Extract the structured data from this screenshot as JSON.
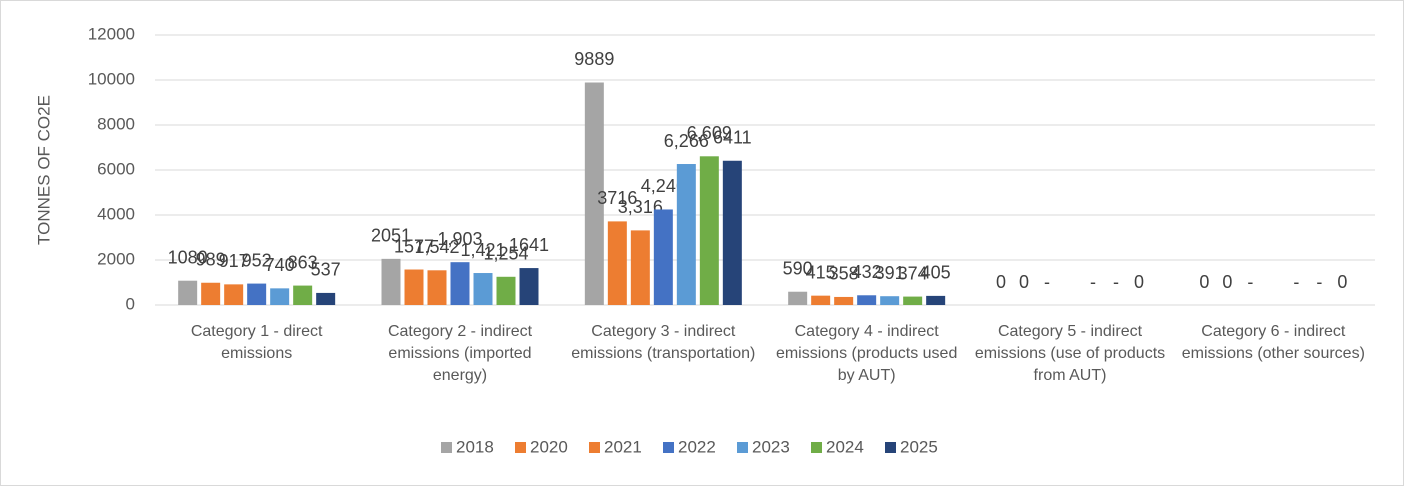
{
  "chart_data": {
    "type": "bar",
    "y_label": "TONNES OF CO2E",
    "categories": [
      "Category 1 - direct emissions",
      "Category 2 - indirect emissions (imported energy)",
      "Category 3 - indirect emissions (transportation)",
      "Category 4 - indirect emissions (products used by AUT)",
      "Category 5 - indirect emissions (use of products from AUT)",
      "Category 6 - indirect emissions (other sources)"
    ],
    "series": [
      {
        "name": "2018",
        "color": "#a5a5a5",
        "values": [
          1080,
          2051,
          9889,
          590,
          0,
          0
        ],
        "value_labels": [
          "1080",
          "2051",
          "9889",
          "590",
          "0",
          "0"
        ]
      },
      {
        "name": "2020",
        "color": "#ed7d31",
        "values": [
          989,
          1577,
          3716,
          415,
          0,
          0
        ],
        "value_labels": [
          "989",
          "1577",
          "3716",
          "415",
          "0",
          "0"
        ]
      },
      {
        "name": "2021",
        "color": "#ed7d31",
        "values": [
          917,
          1542,
          3316,
          358,
          0,
          0
        ],
        "value_labels": [
          "917",
          "1,542",
          "3,316",
          "358",
          "-",
          "-"
        ]
      },
      {
        "name": "2022",
        "color": "#4472c4",
        "values": [
          952,
          1903,
          4246,
          432,
          null,
          null
        ],
        "value_labels": [
          "952",
          "1,903",
          "4,246",
          "432",
          null,
          null
        ]
      },
      {
        "name": "2023",
        "color": "#5b9bd5",
        "values": [
          740,
          1421,
          6266,
          391,
          0,
          0
        ],
        "value_labels": [
          "740",
          "1,421",
          "6,266",
          "391",
          "-",
          "-"
        ]
      },
      {
        "name": "2024",
        "color": "#70ad47",
        "values": [
          863,
          1254,
          6609,
          374,
          0,
          0
        ],
        "value_labels": [
          "863",
          "1,254",
          "6,609",
          "374",
          "-",
          "-"
        ]
      },
      {
        "name": "2025",
        "color": "#264478",
        "values": [
          537,
          1641,
          6411,
          405,
          0,
          0
        ],
        "value_labels": [
          "537",
          "1641",
          "6411",
          "405",
          "0",
          "0"
        ]
      }
    ],
    "ylim": [
      0,
      12000
    ],
    "yticks": [
      0,
      2000,
      4000,
      6000,
      8000,
      10000,
      12000
    ],
    "grid": true,
    "legend": "bottom"
  }
}
